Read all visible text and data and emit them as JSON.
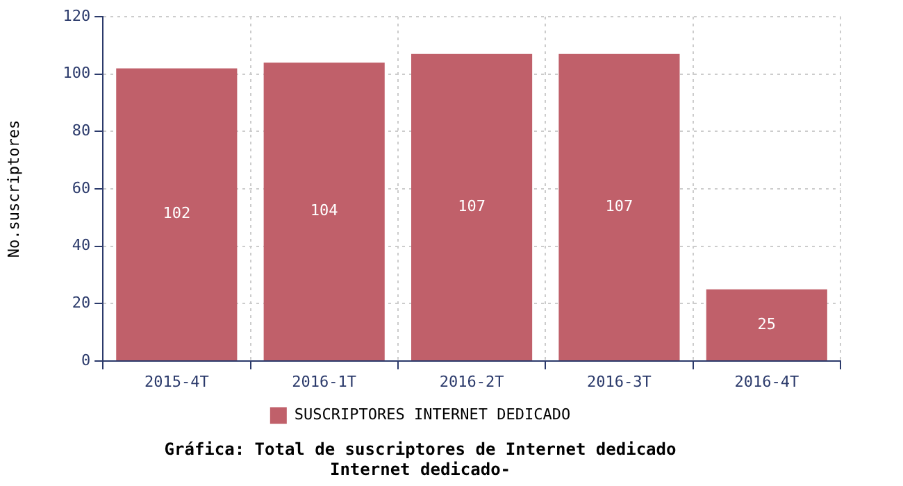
{
  "chart_data": {
    "type": "bar",
    "title": "Gráfica: Total de suscriptores de Internet dedicado",
    "subtitle": "Internet dedicado-",
    "ylabel": "No.suscriptores",
    "categories": [
      "2015-4T",
      "2016-1T",
      "2016-2T",
      "2016-3T",
      "2016-4T"
    ],
    "series": [
      {
        "name": "SUSCRIPTORES INTERNET DEDICADO",
        "color": "#c0606a",
        "values": [
          102,
          104,
          107,
          107,
          25
        ]
      }
    ],
    "ylim": [
      0,
      120
    ],
    "yticks": [
      0,
      20,
      40,
      60,
      80,
      100,
      120
    ],
    "grid": true,
    "legend": "bottom",
    "data_labels": true
  }
}
